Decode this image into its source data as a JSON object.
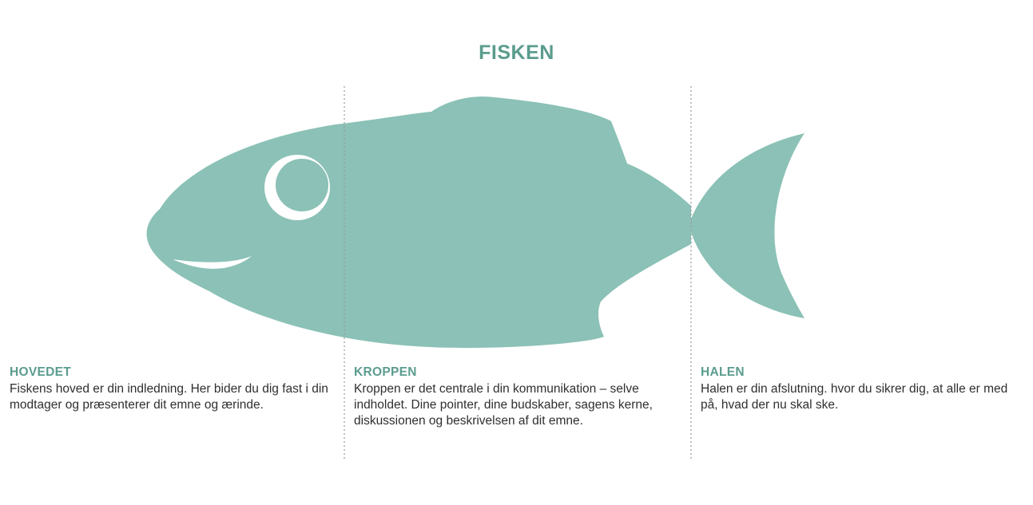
{
  "title": "FISKEN",
  "colors": {
    "fish": "#8bc1b6",
    "heading": "#5b9c8e",
    "text": "#2f2f2f",
    "divider": "#9a9a9a"
  },
  "sections": [
    {
      "heading": "HOVEDET",
      "text": "Fiskens hoved er din indledning. Her bider du dig fast i din modtager og præsenterer dit emne og ærinde."
    },
    {
      "heading": "KROPPEN",
      "text": "Kroppen er det centrale i din kommunikation – selve indholdet. Dine pointer, dine budskaber, sagens kerne, diskussionen og beskrivelsen af dit emne."
    },
    {
      "heading": "HALEN",
      "text": "Halen er din afslutning. hvor du sikrer dig, at alle er med på, hvad der nu skal ske."
    }
  ]
}
